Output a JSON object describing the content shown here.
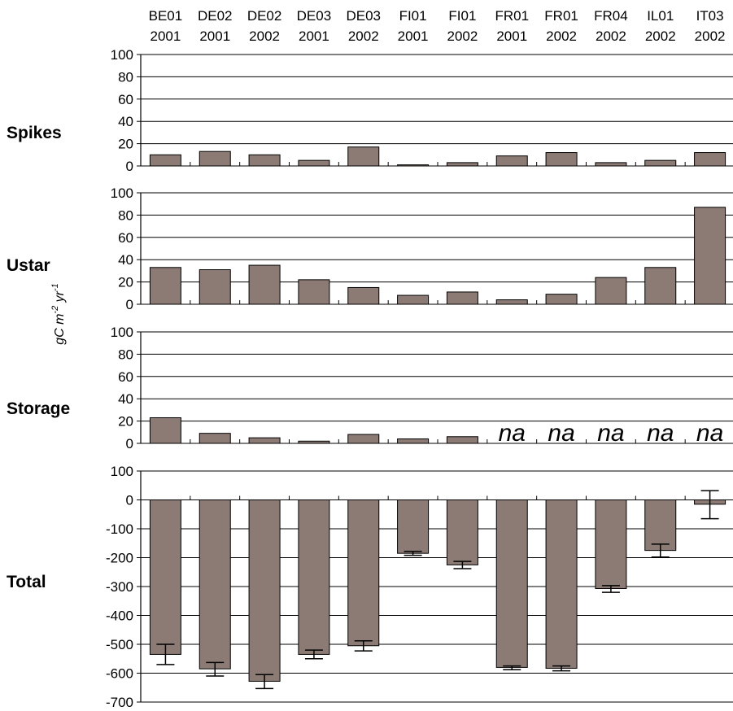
{
  "chart_data": {
    "type": "bar",
    "categories": [
      [
        "BE01",
        "2001"
      ],
      [
        "DE02",
        "2001"
      ],
      [
        "DE02",
        "2002"
      ],
      [
        "DE03",
        "2001"
      ],
      [
        "DE03",
        "2002"
      ],
      [
        "FI01",
        "2001"
      ],
      [
        "FI01",
        "2002"
      ],
      [
        "FR01",
        "2001"
      ],
      [
        "FR01",
        "2002"
      ],
      [
        "FR04",
        "2002"
      ],
      [
        "IL01",
        "2002"
      ],
      [
        "IT03",
        "2002"
      ]
    ],
    "ylabel_parts": [
      "gC m",
      "-2",
      " yr",
      "-1"
    ],
    "bar_color": "#8c7b75",
    "panels": [
      {
        "label": "Spikes",
        "ylim": [
          0,
          100
        ],
        "ticks": [
          0,
          20,
          40,
          60,
          80,
          100
        ],
        "values": [
          10,
          13,
          10,
          5,
          17,
          1,
          3,
          9,
          12,
          3,
          5,
          12
        ]
      },
      {
        "label": "Ustar",
        "ylim": [
          0,
          100
        ],
        "ticks": [
          0,
          20,
          40,
          60,
          80,
          100
        ],
        "values": [
          33,
          31,
          35,
          22,
          15,
          8,
          11,
          4,
          9,
          24,
          33,
          87
        ]
      },
      {
        "label": "Storage",
        "ylim": [
          0,
          100
        ],
        "ticks": [
          0,
          20,
          40,
          60,
          80,
          100
        ],
        "values": [
          23,
          9,
          5,
          2,
          8,
          4,
          6,
          null,
          null,
          null,
          null,
          null
        ],
        "na_text": "na"
      },
      {
        "label": "Total",
        "ylim": [
          -700,
          100
        ],
        "ticks": [
          -700,
          -600,
          -500,
          -400,
          -300,
          -200,
          -100,
          0,
          100
        ],
        "values": [
          -535,
          -585,
          -628,
          -535,
          -505,
          -185,
          -225,
          -580,
          -583,
          -307,
          -175,
          -15
        ],
        "error_low": [
          -570,
          -610,
          -653,
          -550,
          -523,
          -192,
          -238,
          -588,
          -592,
          -320,
          -198,
          -65
        ],
        "error_high": [
          -500,
          -563,
          -605,
          -520,
          -488,
          -178,
          -213,
          -575,
          -575,
          -297,
          -153,
          32
        ]
      }
    ]
  }
}
